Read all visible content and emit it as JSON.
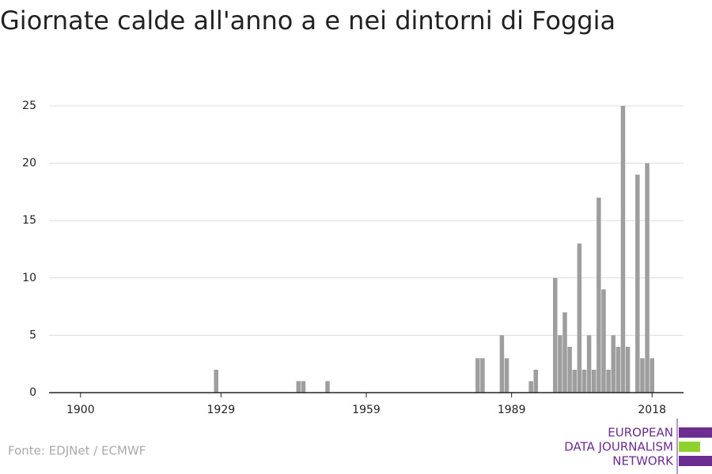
{
  "chart_data": {
    "type": "bar",
    "title": "Giornate calde all'anno a e nei dintorni di Foggia",
    "x": [
      1928,
      1945,
      1946,
      1951,
      1982,
      1983,
      1987,
      1988,
      1993,
      1994,
      1998,
      1999,
      2000,
      2001,
      2002,
      2003,
      2004,
      2005,
      2006,
      2007,
      2008,
      2009,
      2010,
      2011,
      2012,
      2013,
      2015,
      2016,
      2017,
      2018
    ],
    "values": [
      2,
      1,
      1,
      1,
      3,
      3,
      5,
      3,
      1,
      2,
      10,
      5,
      7,
      4,
      2,
      13,
      2,
      5,
      2,
      17,
      9,
      2,
      5,
      4,
      25,
      4,
      19,
      3,
      20,
      3
    ],
    "color": "#9e9e9e",
    "xlim": [
      1893.5,
      2024.5
    ],
    "xticks": [
      1900,
      1929,
      1959,
      1989,
      2018
    ],
    "ylim": [
      0,
      25
    ],
    "yticks": [
      0,
      5,
      10,
      15,
      20,
      25
    ],
    "grid": true,
    "source": "Fonte: EDJNet / ECMWF"
  },
  "logo": {
    "lines": [
      "EUROPEAN",
      "DATA JOURNALISM",
      "NETWORK"
    ]
  }
}
